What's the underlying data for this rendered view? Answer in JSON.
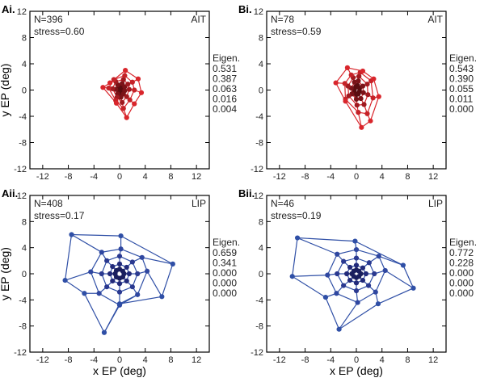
{
  "colors": {
    "AIT": "#d9262c",
    "LIP": "#2f4fa6",
    "axis": "#000000",
    "text": "#222222"
  },
  "chart_data": [
    {
      "panel": "Ai.",
      "type": "scatter",
      "area": "AIT",
      "n_label": "N=396",
      "stress_label": "stress=0.60",
      "eigen_title": "Eigen.",
      "eigen_values": [
        "0.531",
        "0.387",
        "0.063",
        "0.016",
        "0.004"
      ],
      "xlabel": "",
      "ylabel": "y EP (deg)",
      "xlim": [
        -14,
        14
      ],
      "ylim": [
        -12,
        12
      ],
      "xticks": [
        -12,
        -8,
        -4,
        0,
        4,
        8,
        12
      ],
      "yticks": [
        12,
        8,
        4,
        0,
        -4,
        -8,
        -12
      ],
      "rings": [
        [
          [
            0.2,
            0.6
          ],
          [
            0.4,
            0.4
          ],
          [
            0.4,
            0.1
          ],
          [
            0.3,
            -0.3
          ],
          [
            0.1,
            -0.5
          ],
          [
            -0.1,
            -0.3
          ],
          [
            -0.2,
            0.0
          ],
          [
            -0.1,
            0.4
          ]
        ],
        [
          [
            0.4,
            1.0
          ],
          [
            0.8,
            0.5
          ],
          [
            0.8,
            -0.1
          ],
          [
            0.6,
            -0.6
          ],
          [
            0.2,
            -1.1
          ],
          [
            -0.3,
            -0.6
          ],
          [
            -0.6,
            0.1
          ],
          [
            -0.3,
            0.8
          ]
        ],
        [
          [
            0.6,
            1.6
          ],
          [
            1.3,
            0.9
          ],
          [
            1.5,
            0.1
          ],
          [
            1.1,
            -1.0
          ],
          [
            0.4,
            -1.9
          ],
          [
            -0.4,
            -1.1
          ],
          [
            -1.1,
            0.2
          ],
          [
            -0.6,
            1.3
          ]
        ],
        [
          [
            0.8,
            2.2
          ],
          [
            2.0,
            1.2
          ],
          [
            2.3,
            0.0
          ],
          [
            1.6,
            -1.5
          ],
          [
            0.6,
            -2.8
          ],
          [
            -0.6,
            -1.6
          ],
          [
            -1.7,
            0.3
          ],
          [
            -0.9,
            1.6
          ]
        ],
        [
          [
            0.9,
            3.0
          ],
          [
            2.9,
            1.7
          ],
          [
            3.4,
            -0.4
          ],
          [
            2.3,
            -2.1
          ],
          [
            1.1,
            -4.2
          ],
          [
            -0.5,
            -2.0
          ],
          [
            -2.6,
            0.4
          ],
          [
            -1.5,
            1.1
          ]
        ]
      ]
    },
    {
      "panel": "Bi.",
      "type": "scatter",
      "area": "AIT",
      "n_label": "N=78",
      "stress_label": "stress=0.59",
      "eigen_title": "Eigen.",
      "eigen_values": [
        "0.543",
        "0.390",
        "0.055",
        "0.011",
        "0.000"
      ],
      "xlabel": "",
      "ylabel": "",
      "xlim": [
        -14,
        14
      ],
      "ylim": [
        -12,
        12
      ],
      "xticks": [
        -12,
        -8,
        -4,
        0,
        4,
        8,
        12
      ],
      "yticks": [
        12,
        8,
        4,
        0,
        -4,
        -8,
        -12
      ],
      "rings": [
        [
          [
            0.2,
            0.7
          ],
          [
            0.5,
            0.3
          ],
          [
            0.5,
            -0.2
          ],
          [
            0.3,
            -0.6
          ],
          [
            0.0,
            -0.7
          ],
          [
            -0.3,
            -0.3
          ],
          [
            -0.3,
            0.1
          ],
          [
            -0.1,
            0.5
          ]
        ],
        [
          [
            0.3,
            1.4
          ],
          [
            1.0,
            0.6
          ],
          [
            1.1,
            -0.4
          ],
          [
            0.7,
            -1.3
          ],
          [
            0.0,
            -1.4
          ],
          [
            -0.7,
            -0.6
          ],
          [
            -0.8,
            0.3
          ],
          [
            -0.3,
            1.2
          ]
        ],
        [
          [
            0.4,
            2.1
          ],
          [
            1.7,
            0.9
          ],
          [
            1.8,
            -0.7
          ],
          [
            1.2,
            -2.2
          ],
          [
            0.1,
            -2.3
          ],
          [
            -1.2,
            -0.9
          ],
          [
            -1.3,
            0.6
          ],
          [
            -0.5,
            1.9
          ]
        ],
        [
          [
            0.6,
            2.7
          ],
          [
            2.3,
            1.4
          ],
          [
            2.6,
            -1.2
          ],
          [
            1.7,
            -3.6
          ],
          [
            0.3,
            -3.4
          ],
          [
            -1.7,
            -1.4
          ],
          [
            -1.8,
            1.0
          ],
          [
            -0.8,
            2.3
          ]
        ],
        [
          [
            1.0,
            2.9
          ],
          [
            2.7,
            1.7
          ],
          [
            3.5,
            -1.0
          ],
          [
            2.2,
            -4.7
          ],
          [
            0.8,
            -5.7
          ],
          [
            -1.7,
            -1.7
          ],
          [
            -3.2,
            1.1
          ],
          [
            -1.4,
            3.4
          ]
        ]
      ]
    },
    {
      "panel": "Aii.",
      "type": "scatter",
      "area": "LIP",
      "n_label": "N=408",
      "stress_label": "stress=0.17",
      "eigen_title": "Eigen.",
      "eigen_values": [
        "0.659",
        "0.341",
        "0.000",
        "0.000",
        "0.000"
      ],
      "xlabel": "x EP (deg)",
      "ylabel": "y EP (deg)",
      "xlim": [
        -14,
        14
      ],
      "ylim": [
        -12,
        12
      ],
      "xticks": [
        -12,
        -8,
        -4,
        0,
        4,
        8,
        12
      ],
      "yticks": [
        12,
        8,
        4,
        0,
        -4,
        -8,
        -12
      ],
      "rings": [
        [
          [
            0.0,
            0.7
          ],
          [
            0.5,
            0.4
          ],
          [
            0.7,
            0.0
          ],
          [
            0.5,
            -0.5
          ],
          [
            0.0,
            -0.7
          ],
          [
            -0.5,
            -0.5
          ],
          [
            -0.7,
            0.0
          ],
          [
            -0.5,
            0.5
          ]
        ],
        [
          [
            0.0,
            1.5
          ],
          [
            1.1,
            1.0
          ],
          [
            1.5,
            0.0
          ],
          [
            1.1,
            -1.1
          ],
          [
            0.0,
            -1.5
          ],
          [
            -1.1,
            -1.1
          ],
          [
            -1.5,
            0.0
          ],
          [
            -1.1,
            1.1
          ]
        ],
        [
          [
            0.0,
            2.7
          ],
          [
            2.0,
            1.8
          ],
          [
            2.8,
            0.0
          ],
          [
            2.0,
            -2.0
          ],
          [
            0.0,
            -2.8
          ],
          [
            -2.0,
            -2.0
          ],
          [
            -2.8,
            0.0
          ],
          [
            -2.0,
            2.0
          ]
        ],
        [
          [
            0.2,
            3.8
          ],
          [
            3.5,
            2.5
          ],
          [
            4.3,
            0.4
          ],
          [
            2.8,
            -3.2
          ],
          [
            0.0,
            -4.8
          ],
          [
            -3.2,
            -3.0
          ],
          [
            -4.5,
            0.3
          ],
          [
            -2.8,
            3.3
          ]
        ],
        [
          [
            0.2,
            5.8
          ],
          [
            8.3,
            1.5
          ],
          [
            6.6,
            -3.5
          ],
          [
            0.0,
            -4.6
          ],
          [
            -2.4,
            -9.0
          ],
          [
            -5.5,
            -3.0
          ],
          [
            -8.5,
            -1.0
          ],
          [
            -7.5,
            6.0
          ]
        ]
      ]
    },
    {
      "panel": "Bii.",
      "type": "scatter",
      "area": "LIP",
      "n_label": "N=46",
      "stress_label": "stress=0.19",
      "eigen_title": "Eigen.",
      "eigen_values": [
        "0.772",
        "0.228",
        "0.000",
        "0.000",
        "0.000"
      ],
      "xlabel": "x EP (deg)",
      "ylabel": "",
      "xlim": [
        -14,
        14
      ],
      "ylim": [
        -12,
        12
      ],
      "xticks": [
        -12,
        -8,
        -4,
        0,
        4,
        8,
        12
      ],
      "yticks": [
        12,
        8,
        4,
        0,
        -4,
        -8,
        -12
      ],
      "rings": [
        [
          [
            0.0,
            0.6
          ],
          [
            0.4,
            0.4
          ],
          [
            0.7,
            0.0
          ],
          [
            0.4,
            -0.4
          ],
          [
            0.0,
            -0.6
          ],
          [
            -0.4,
            -0.4
          ],
          [
            -0.7,
            0.0
          ],
          [
            -0.4,
            0.4
          ]
        ],
        [
          [
            0.0,
            1.3
          ],
          [
            1.0,
            0.9
          ],
          [
            1.5,
            0.0
          ],
          [
            1.0,
            -1.0
          ],
          [
            0.0,
            -1.4
          ],
          [
            -1.0,
            -1.0
          ],
          [
            -1.5,
            0.0
          ],
          [
            -1.0,
            1.0
          ]
        ],
        [
          [
            0.0,
            2.4
          ],
          [
            2.0,
            1.7
          ],
          [
            2.8,
            0.0
          ],
          [
            1.9,
            -1.8
          ],
          [
            0.0,
            -2.6
          ],
          [
            -2.0,
            -1.8
          ],
          [
            -3.0,
            0.0
          ],
          [
            -2.0,
            1.9
          ]
        ],
        [
          [
            0.0,
            3.7
          ],
          [
            3.5,
            2.7
          ],
          [
            4.5,
            0.5
          ],
          [
            3.0,
            -2.8
          ],
          [
            0.2,
            -4.4
          ],
          [
            -3.1,
            -3.0
          ],
          [
            -4.5,
            -0.2
          ],
          [
            -3.0,
            3.0
          ]
        ],
        [
          [
            -0.2,
            5.0
          ],
          [
            7.3,
            1.3
          ],
          [
            8.9,
            -2.2
          ],
          [
            3.4,
            -4.6
          ],
          [
            -2.7,
            -8.5
          ],
          [
            -4.8,
            -3.6
          ],
          [
            -10.0,
            -0.4
          ],
          [
            -9.2,
            5.5
          ]
        ]
      ]
    }
  ]
}
